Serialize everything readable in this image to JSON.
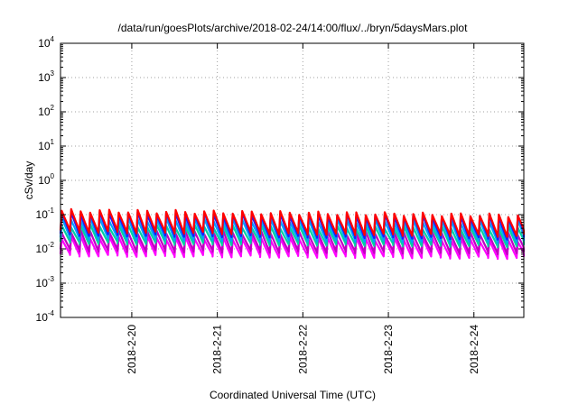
{
  "chart_data": {
    "type": "line",
    "title": "/data/run/goesPlots/archive/2018-02-24/14:00/flux/../bryn/5daysMars.plot",
    "xlabel": "Coordinated Universal Time (UTC)",
    "ylabel": "cSv/day",
    "yscale": "log",
    "ylim": [
      0.0001,
      10000
    ],
    "y_ticks": [
      {
        "base": "10",
        "exp": "-4",
        "value": 0.0001
      },
      {
        "base": "10",
        "exp": "-3",
        "value": 0.001
      },
      {
        "base": "10",
        "exp": "-2",
        "value": 0.01
      },
      {
        "base": "10",
        "exp": "-1",
        "value": 0.1
      },
      {
        "base": "10",
        "exp": "0",
        "value": 1
      },
      {
        "base": "10",
        "exp": "1",
        "value": 10
      },
      {
        "base": "10",
        "exp": "2",
        "value": 100
      },
      {
        "base": "10",
        "exp": "3",
        "value": 1000
      },
      {
        "base": "10",
        "exp": "4",
        "value": 10000
      }
    ],
    "xlim": [
      "2018-02-19 04:00",
      "2018-02-24 14:00"
    ],
    "x_ticks": [
      {
        "label": "2018-2-20",
        "value": "2018-02-20"
      },
      {
        "label": "2018-2-21",
        "value": "2018-02-21"
      },
      {
        "label": "2018-2-22",
        "value": "2018-02-22"
      },
      {
        "label": "2018-2-23",
        "value": "2018-02-23"
      },
      {
        "label": "2018-2-24",
        "value": "2018-02-24"
      }
    ],
    "grid": true,
    "pulses_per_day": 9,
    "series": [
      {
        "color": "#ff0000",
        "peak": [
          0.13,
          0.095
        ],
        "trough": [
          0.032,
          0.024
        ]
      },
      {
        "color": "#1a1aff",
        "peak": [
          0.11,
          0.085
        ],
        "trough": [
          0.026,
          0.02
        ]
      },
      {
        "color": "#00a0ff",
        "peak": [
          0.075,
          0.06
        ],
        "trough": [
          0.02,
          0.016
        ]
      },
      {
        "color": "#00d0a0",
        "peak": [
          0.048,
          0.04
        ],
        "trough": [
          0.015,
          0.012
        ]
      },
      {
        "color": "#c000c0",
        "peak": [
          0.032,
          0.027
        ],
        "trough": [
          0.009,
          0.0075
        ]
      },
      {
        "color": "#ff00ff",
        "peak": [
          0.022,
          0.018
        ],
        "trough": [
          0.0065,
          0.0055
        ]
      }
    ]
  }
}
